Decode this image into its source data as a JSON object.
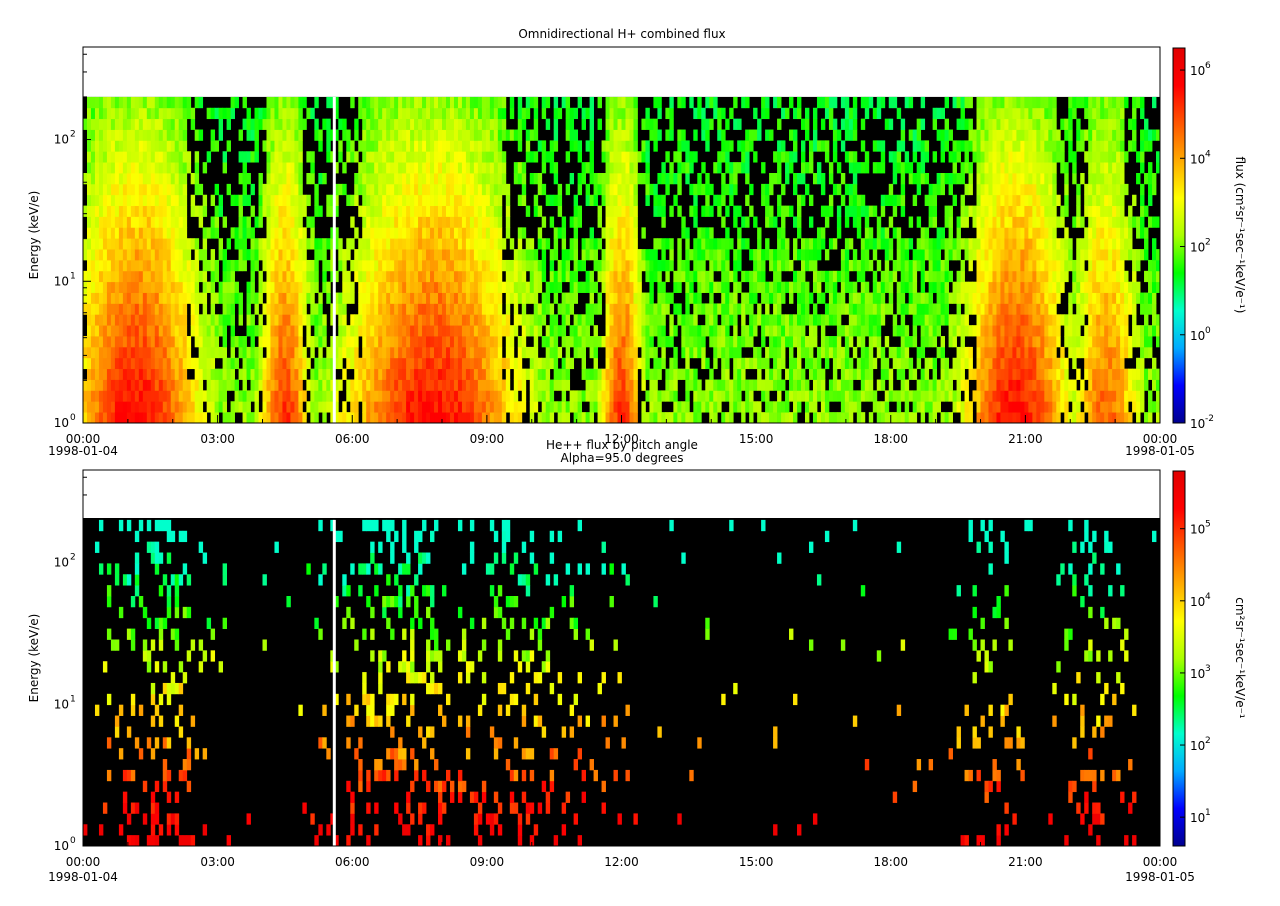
{
  "chart_data": [
    {
      "type": "heatmap",
      "title": "Omnidirectional H+ combined flux",
      "ylabel": "Energy (keV/e)",
      "y_scale": "log",
      "ylim": [
        1,
        450
      ],
      "y_ticks": [
        {
          "base": "10",
          "exp": "0"
        },
        {
          "base": "10",
          "exp": "1"
        },
        {
          "base": "10",
          "exp": "2"
        }
      ],
      "x_ticks": [
        "00:00",
        "03:00",
        "06:00",
        "09:00",
        "12:00",
        "15:00",
        "18:00",
        "21:00",
        "00:00"
      ],
      "x_start_date": "1998-01-04",
      "x_end_date": "1998-01-05",
      "colorbar_label": "flux (cm²sr⁻¹sec⁻¹keV/e⁻¹)",
      "colorbar_scale": "log",
      "colorbar_ticks": [
        {
          "base": "10",
          "exp": "-2"
        },
        {
          "base": "10",
          "exp": "0"
        },
        {
          "base": "10",
          "exp": "2"
        },
        {
          "base": "10",
          "exp": "4"
        },
        {
          "base": "10",
          "exp": "6"
        }
      ],
      "colorbar_range_log10": [
        -2,
        6.5
      ],
      "colormap": [
        "#00008f",
        "#0000ff",
        "#00aaff",
        "#00ffcc",
        "#00ff00",
        "#aaff00",
        "#ffff00",
        "#ffaa00",
        "#ff5500",
        "#ff0000",
        "#e00000"
      ]
    },
    {
      "type": "heatmap",
      "title": "He++ flux by pitch angle",
      "subtitle": "Alpha=95.0 degrees",
      "ylabel": "Energy (keV/e)",
      "y_scale": "log",
      "ylim": [
        1,
        450
      ],
      "y_ticks": [
        {
          "base": "10",
          "exp": "0"
        },
        {
          "base": "10",
          "exp": "1"
        },
        {
          "base": "10",
          "exp": "2"
        }
      ],
      "x_ticks": [
        "00:00",
        "03:00",
        "06:00",
        "09:00",
        "12:00",
        "15:00",
        "18:00",
        "21:00",
        "00:00"
      ],
      "x_start_date": "1998-01-04",
      "x_end_date": "1998-01-05",
      "colorbar_label": "cm²sr⁻¹sec⁻¹keV/e⁻¹",
      "colorbar_scale": "log",
      "colorbar_ticks": [
        {
          "base": "10",
          "exp": "1"
        },
        {
          "base": "10",
          "exp": "2"
        },
        {
          "base": "10",
          "exp": "3"
        },
        {
          "base": "10",
          "exp": "4"
        },
        {
          "base": "10",
          "exp": "5"
        }
      ],
      "colorbar_range_log10": [
        0.6,
        5.8
      ],
      "colormap": [
        "#00008f",
        "#0000ff",
        "#00aaff",
        "#00ffcc",
        "#00ff00",
        "#aaff00",
        "#ffff00",
        "#ffaa00",
        "#ff5500",
        "#ff0000",
        "#e00000"
      ]
    }
  ]
}
